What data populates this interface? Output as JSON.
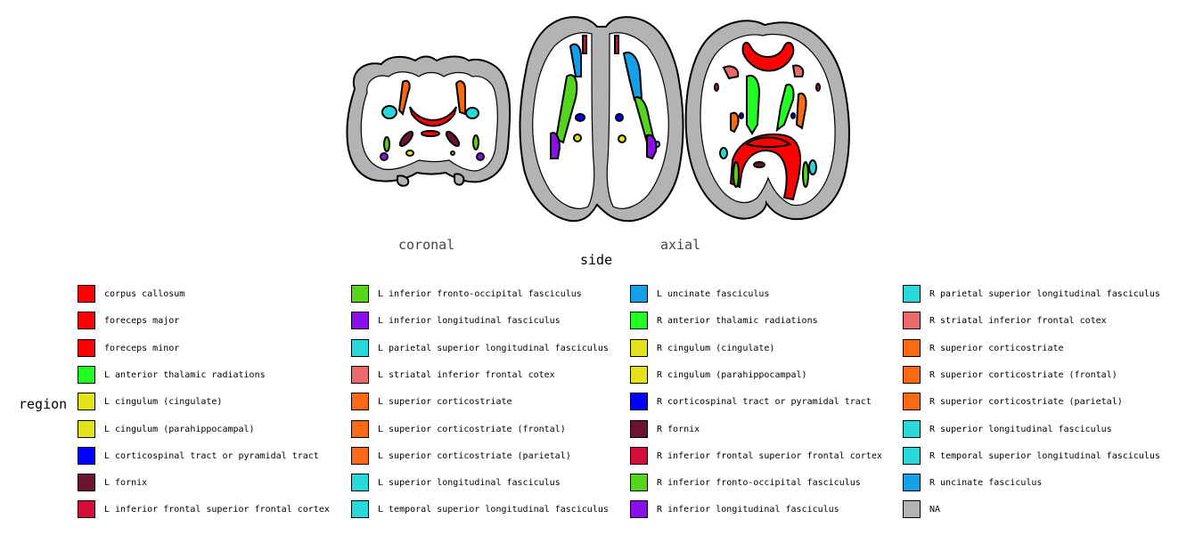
{
  "views": {
    "coronal": "coronal",
    "axial": "axial",
    "side_title": "side"
  },
  "legend": {
    "title": "region",
    "items": [
      {
        "label": "corpus callosum",
        "color": "#ff0000"
      },
      {
        "label": "foreceps major",
        "color": "#ff0000"
      },
      {
        "label": "foreceps minor",
        "color": "#ff0000"
      },
      {
        "label": "L anterior thalamic radiations",
        "color": "#22ff22"
      },
      {
        "label": "L cingulum (cingulate)",
        "color": "#e3e31a"
      },
      {
        "label": "L cingulum (parahippocampal)",
        "color": "#e3e31a"
      },
      {
        "label": "L corticospinal tract or pyramidal tract",
        "color": "#0000ff"
      },
      {
        "label": "L fornix",
        "color": "#6b1333"
      },
      {
        "label": "L inferior frontal superior frontal cortex",
        "color": "#d60c3c"
      },
      {
        "label": "L inferior fronto-occipital fasciculus",
        "color": "#55d61d"
      },
      {
        "label": "L inferior longitudinal fasciculus",
        "color": "#8a0fe8"
      },
      {
        "label": "L parietal superior longitudinal fasciculus",
        "color": "#29d8d8"
      },
      {
        "label": "L striatal inferior frontal cotex",
        "color": "#e86a6a"
      },
      {
        "label": "L superior corticostriate",
        "color": "#fa6a14"
      },
      {
        "label": "L superior corticostriate (frontal)",
        "color": "#fa6a14"
      },
      {
        "label": "L superior corticostriate (parietal)",
        "color": "#fa6a14"
      },
      {
        "label": "L superior longitudinal fasciculus",
        "color": "#29d8d8"
      },
      {
        "label": "L temporal superior longitudinal fasciculus",
        "color": "#29d8d8"
      },
      {
        "label": "L uncinate fasciculus",
        "color": "#14a0e8"
      },
      {
        "label": "R anterior thalamic radiations",
        "color": "#22ff22"
      },
      {
        "label": "R cingulum (cingulate)",
        "color": "#e3e31a"
      },
      {
        "label": "R cingulum (parahippocampal)",
        "color": "#e3e31a"
      },
      {
        "label": "R corticospinal tract or pyramidal tract",
        "color": "#0000ff"
      },
      {
        "label": "R fornix",
        "color": "#6b1333"
      },
      {
        "label": "R inferior frontal superior frontal cortex",
        "color": "#d60c3c"
      },
      {
        "label": "R inferior fronto-occipital fasciculus",
        "color": "#55d61d"
      },
      {
        "label": "R inferior longitudinal fasciculus",
        "color": "#8a0fe8"
      },
      {
        "label": "R parietal superior longitudinal fasciculus",
        "color": "#29d8d8"
      },
      {
        "label": "R striatal inferior frontal cotex",
        "color": "#e86a6a"
      },
      {
        "label": "R superior corticostriate",
        "color": "#fa6a14"
      },
      {
        "label": "R superior corticostriate (frontal)",
        "color": "#fa6a14"
      },
      {
        "label": "R superior corticostriate (parietal)",
        "color": "#fa6a14"
      },
      {
        "label": "R superior longitudinal fasciculus",
        "color": "#29d8d8"
      },
      {
        "label": "R temporal superior longitudinal fasciculus",
        "color": "#29d8d8"
      },
      {
        "label": "R uncinate fasciculus",
        "color": "#14a0e8"
      },
      {
        "label": "NA",
        "color": "#b3b3b3"
      }
    ]
  },
  "atlas_colors": {
    "outline": "#000000",
    "cortex": "#b3b3b3",
    "white_matter": "#ffffff"
  }
}
